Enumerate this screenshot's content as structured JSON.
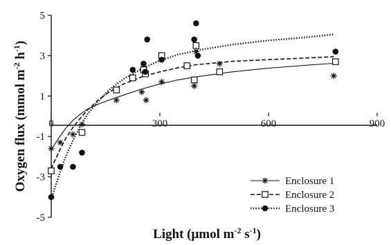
{
  "chart_data": {
    "type": "scatter",
    "title": "",
    "xlabel": {
      "base": "Light (μmol m",
      "sup1": "-2",
      "mid": " s",
      "sup2": "-1",
      "end": ")"
    },
    "ylabel": {
      "base": "Oxygen flux (mmol m",
      "sup1": "-2",
      "mid": " h",
      "sup2": "-1",
      "end": ")"
    },
    "xlim": [
      0,
      900
    ],
    "ylim": [
      -5,
      5
    ],
    "xticks": [
      0,
      300,
      600,
      900
    ],
    "yticks": [
      -5,
      -3,
      -1,
      1,
      3,
      5
    ],
    "legend_position": "bottom-right",
    "series": [
      {
        "name": "Enclosure 1",
        "marker": "asterisk",
        "line_style": "solid",
        "points": [
          [
            0,
            -1.6
          ],
          [
            25,
            -1.3
          ],
          [
            60,
            -0.9
          ],
          [
            85,
            -0.4
          ],
          [
            180,
            0.8
          ],
          [
            250,
            1.2
          ],
          [
            262,
            0.8
          ],
          [
            305,
            1.7
          ],
          [
            395,
            1.5
          ],
          [
            400,
            3.2
          ],
          [
            465,
            2.6
          ],
          [
            780,
            2.0
          ]
        ],
        "curve": [
          [
            0,
            -1.65
          ],
          [
            20,
            -1.1
          ],
          [
            40,
            -0.6
          ],
          [
            60,
            -0.2
          ],
          [
            80,
            0.1
          ],
          [
            100,
            0.35
          ],
          [
            130,
            0.6
          ],
          [
            160,
            0.8
          ],
          [
            200,
            1.05
          ],
          [
            250,
            1.35
          ],
          [
            300,
            1.6
          ],
          [
            350,
            1.8
          ],
          [
            400,
            1.95
          ],
          [
            500,
            2.2
          ],
          [
            600,
            2.38
          ],
          [
            700,
            2.52
          ],
          [
            780,
            2.62
          ]
        ]
      },
      {
        "name": "Enclosure 2",
        "marker": "open-square",
        "line_style": "dashed",
        "points": [
          [
            0,
            -2.7
          ],
          [
            85,
            -0.8
          ],
          [
            180,
            1.3
          ],
          [
            225,
            1.9
          ],
          [
            255,
            2.3
          ],
          [
            260,
            2.1
          ],
          [
            305,
            3.0
          ],
          [
            375,
            2.5
          ],
          [
            395,
            1.8
          ],
          [
            400,
            3.5
          ],
          [
            465,
            2.2
          ],
          [
            785,
            2.7
          ]
        ],
        "curve": [
          [
            0,
            -2.6
          ],
          [
            20,
            -1.8
          ],
          [
            40,
            -1.1
          ],
          [
            60,
            -0.55
          ],
          [
            80,
            -0.1
          ],
          [
            100,
            0.3
          ],
          [
            130,
            0.8
          ],
          [
            160,
            1.2
          ],
          [
            200,
            1.6
          ],
          [
            250,
            1.95
          ],
          [
            300,
            2.2
          ],
          [
            350,
            2.4
          ],
          [
            400,
            2.55
          ],
          [
            500,
            2.72
          ],
          [
            600,
            2.8
          ],
          [
            700,
            2.88
          ],
          [
            780,
            2.95
          ]
        ]
      },
      {
        "name": "Enclosure 3",
        "marker": "filled-circle",
        "line_style": "dotted",
        "points": [
          [
            0,
            -4.0
          ],
          [
            25,
            -2.5
          ],
          [
            60,
            -2.5
          ],
          [
            85,
            -1.8
          ],
          [
            225,
            2.3
          ],
          [
            255,
            2.6
          ],
          [
            260,
            2.2
          ],
          [
            265,
            3.8
          ],
          [
            305,
            2.8
          ],
          [
            395,
            3.8
          ],
          [
            400,
            4.6
          ],
          [
            405,
            3.0
          ],
          [
            785,
            3.2
          ]
        ],
        "curve": [
          [
            0,
            -4.1
          ],
          [
            20,
            -3.0
          ],
          [
            40,
            -2.0
          ],
          [
            60,
            -1.2
          ],
          [
            80,
            -0.5
          ],
          [
            100,
            0.1
          ],
          [
            130,
            0.75
          ],
          [
            160,
            1.3
          ],
          [
            200,
            1.85
          ],
          [
            250,
            2.35
          ],
          [
            300,
            2.75
          ],
          [
            350,
            3.05
          ],
          [
            400,
            3.25
          ],
          [
            500,
            3.55
          ],
          [
            600,
            3.75
          ],
          [
            700,
            3.9
          ],
          [
            780,
            4.05
          ]
        ]
      }
    ]
  }
}
